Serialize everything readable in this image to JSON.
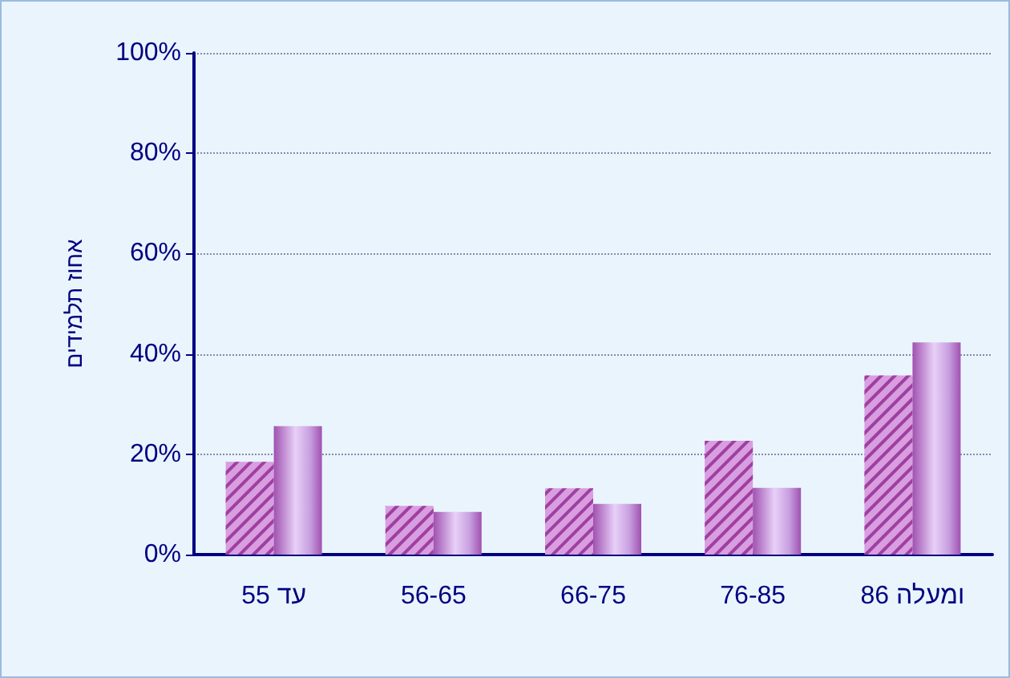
{
  "chart_data": {
    "type": "bar",
    "ylabel": "אחוז תלמידים",
    "categories": [
      "עד 55",
      "56-65",
      "66-75",
      "76-85",
      "86 ומעלה"
    ],
    "series": [
      {
        "color": "#d89ee0",
        "values": [
          18.5,
          9.7,
          13.2,
          22.7,
          35.7
        ]
      },
      {
        "color": "#a052b0",
        "values": [
          25.6,
          8.5,
          10.1,
          13.3,
          42.3
        ]
      }
    ],
    "ylim": [
      0,
      100
    ],
    "yticks": [
      {
        "value": 0,
        "label": "0%"
      },
      {
        "value": 20,
        "label": "20%"
      },
      {
        "value": 40,
        "label": "40%"
      },
      {
        "value": 60,
        "label": "60%"
      },
      {
        "value": 80,
        "label": "80%"
      },
      {
        "value": 100,
        "label": "100%"
      }
    ],
    "grid": "y"
  }
}
